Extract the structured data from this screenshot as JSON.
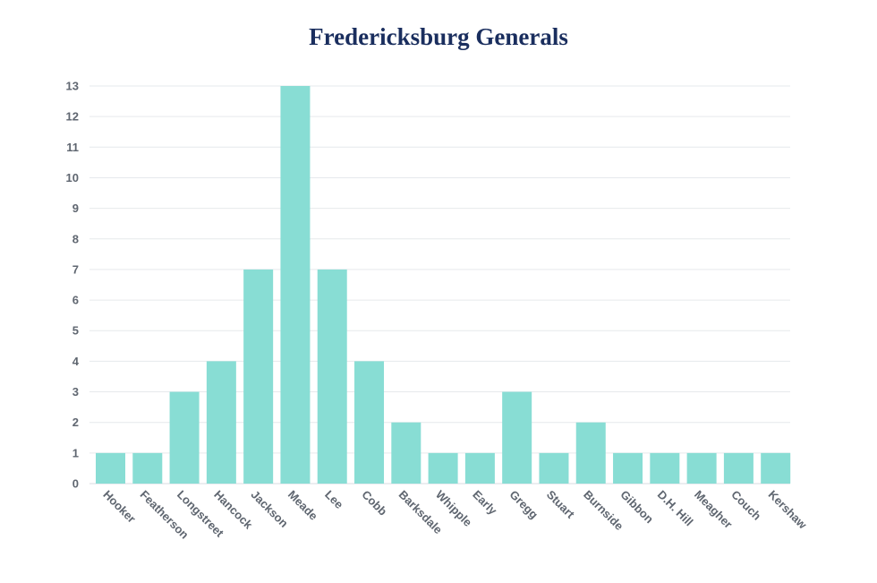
{
  "chart_data": {
    "type": "bar",
    "title": "Fredericksburg Generals",
    "xlabel": "",
    "ylabel": "",
    "categories": [
      "Hooker",
      "Featherson",
      "Longstreet",
      "Hancock",
      "Jackson",
      "Meade",
      "Lee",
      "Cobb",
      "Barksdale",
      "Whipple",
      "Early",
      "Gregg",
      "Stuart",
      "Burnside",
      "Gibbon",
      "D.H. Hill",
      "Meagher",
      "Couch",
      "Kershaw"
    ],
    "values": [
      1,
      1,
      3,
      4,
      7,
      13,
      7,
      4,
      2,
      1,
      1,
      3,
      1,
      2,
      1,
      1,
      1,
      1,
      1
    ],
    "ylim": [
      0,
      13
    ],
    "yticks": [
      0,
      1,
      2,
      3,
      4,
      5,
      6,
      7,
      8,
      9,
      10,
      11,
      12,
      13
    ],
    "grid": true,
    "legend": "none",
    "bar_color": "#88ddd4"
  }
}
